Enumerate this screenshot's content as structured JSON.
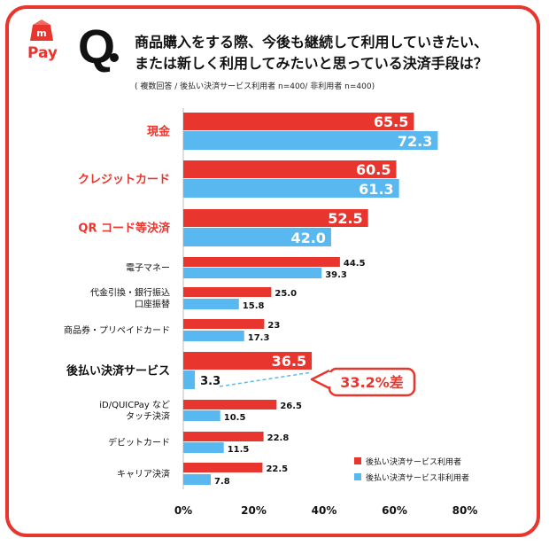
{
  "brand": {
    "logo_text": "Pay",
    "logo_mark": "m",
    "color": "#e8362e"
  },
  "question": {
    "mark": "Q",
    "line1": "商品購入をする際、今後も継続して利用していきたい、",
    "line2": "または新しく利用してみたいと思っている決済手段は？",
    "note": "( 複数回答 / 後払い決済サービス利用者 n=400/ 非利用者 n=400)"
  },
  "chart_data": {
    "type": "bar",
    "orientation": "horizontal",
    "categories": [
      [
        "現金"
      ],
      [
        "クレジットカード"
      ],
      [
        "QR コード等決済"
      ],
      [
        "電子マネー"
      ],
      [
        "代金引換・銀行振込",
        "口座振替"
      ],
      [
        "商品券・プリペイドカード"
      ],
      [
        "後払い決済サービス"
      ],
      [
        "iD/QUICPay など",
        "タッチ決済"
      ],
      [
        "デビットカード"
      ],
      [
        "キャリア決済"
      ]
    ],
    "series": [
      {
        "name": "後払い決済サービス利用者",
        "color": "#e8362e",
        "values": [
          65.5,
          60.5,
          52.5,
          44.5,
          25.0,
          23,
          36.5,
          26.5,
          22.8,
          22.5
        ],
        "labels": [
          "65.5",
          "60.5",
          "52.5",
          "44.5",
          "25.0",
          "23",
          "36.5",
          "26.5",
          "22.8",
          "22.5"
        ]
      },
      {
        "name": "後払い決済サービス非利用者",
        "color": "#5ab8f0",
        "values": [
          72.3,
          61.3,
          42.0,
          39.3,
          15.8,
          17.3,
          3.3,
          10.5,
          11.5,
          7.8
        ],
        "labels": [
          "72.3",
          "61.3",
          "42.0",
          "39.3",
          "15.8",
          "17.3",
          "3.3",
          "10.5",
          "11.5",
          "7.8"
        ]
      }
    ],
    "highlight_categories": [
      0,
      1,
      2
    ],
    "bold_categories": [
      6
    ],
    "xlim": [
      0,
      80
    ],
    "xticks": [
      "0%",
      "20%",
      "40%",
      "60%",
      "80%"
    ],
    "annotation": {
      "text": "33.2%差",
      "category_index": 6
    },
    "legend": "bottom-right",
    "grid": false
  }
}
